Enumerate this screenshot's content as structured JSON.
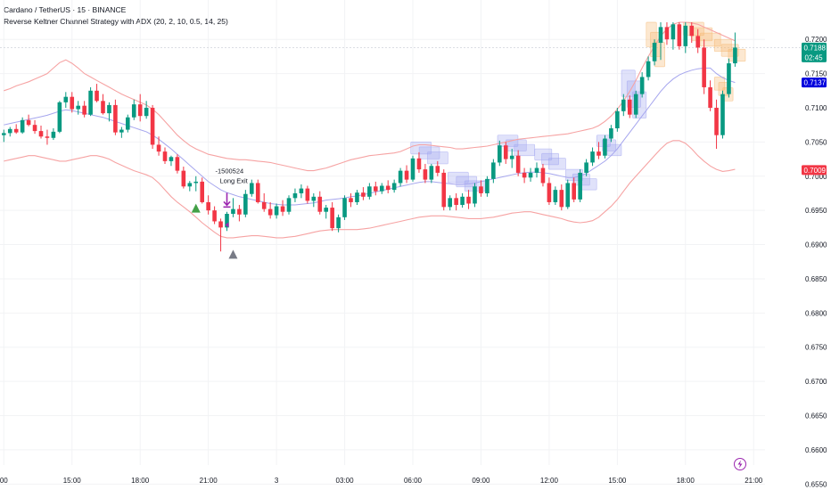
{
  "header": {
    "symbol_line": "Cardano / TetherUS · 15 · BINANCE",
    "indicator_line": "Reverse Keltner Channel Strategy with ADX (20, 2, 10, 0.5, 14, 25)"
  },
  "price_badges": [
    {
      "label": "0.7188",
      "sub": "02:45",
      "price": 0.7188,
      "color": "#089981"
    },
    {
      "label": "0.7137",
      "sub": "",
      "price": 0.7137,
      "color": "#0000dd"
    },
    {
      "label": "0.7009",
      "sub": "",
      "price": 0.7009,
      "color": "#f23645"
    }
  ],
  "annotations": {
    "order_id": "-1500524",
    "exit_label": "Long Exit"
  },
  "flash_icon": "lightning-icon",
  "chart_data": {
    "type": "candlestick",
    "title": "Cardano / TetherUS · 15 · BINANCE",
    "ylim": [
      0.654,
      0.7225
    ],
    "y_ticks": [
      "0.7200",
      "0.7150",
      "0.7100",
      "0.7050",
      "0.7000",
      "0.6950",
      "0.6900",
      "0.6850",
      "0.6800",
      "0.6750",
      "0.6700",
      "0.6650",
      "0.6600",
      "0.6550"
    ],
    "x_ticks": [
      "00",
      "15:00",
      "18:00",
      "21:00",
      "3",
      "03:00",
      "06:00",
      "09:00",
      "12:00",
      "15:00",
      "18:00",
      "21:00"
    ],
    "x_tick_slots": [
      0,
      11,
      22,
      33,
      44,
      55,
      66,
      77,
      88,
      99,
      110,
      121
    ],
    "colors": {
      "up": "#089981",
      "down": "#f23645",
      "channel": "#f6a3a3",
      "basis": "#a6a6ee"
    },
    "candles": [
      [
        0.706,
        0.7068,
        0.705,
        0.7063
      ],
      [
        0.7063,
        0.7072,
        0.7058,
        0.7069
      ],
      [
        0.7069,
        0.7076,
        0.7062,
        0.7064
      ],
      [
        0.7064,
        0.7086,
        0.7062,
        0.7082
      ],
      [
        0.7082,
        0.709,
        0.7073,
        0.7075
      ],
      [
        0.7075,
        0.7082,
        0.7062,
        0.7066
      ],
      [
        0.7066,
        0.7074,
        0.7055,
        0.7058
      ],
      [
        0.7058,
        0.7068,
        0.7046,
        0.7056
      ],
      [
        0.7056,
        0.707,
        0.7053,
        0.7065
      ],
      [
        0.7065,
        0.711,
        0.7063,
        0.7108
      ],
      [
        0.7108,
        0.7123,
        0.71,
        0.7116
      ],
      [
        0.7116,
        0.7123,
        0.7093,
        0.7098
      ],
      [
        0.7098,
        0.711,
        0.709,
        0.7103
      ],
      [
        0.7103,
        0.711,
        0.7086,
        0.709
      ],
      [
        0.709,
        0.713,
        0.7088,
        0.7125
      ],
      [
        0.7125,
        0.7135,
        0.7108,
        0.711
      ],
      [
        0.711,
        0.712,
        0.709,
        0.7092
      ],
      [
        0.7092,
        0.7108,
        0.708,
        0.7104
      ],
      [
        0.7104,
        0.7112,
        0.706,
        0.7064
      ],
      [
        0.7064,
        0.7072,
        0.7056,
        0.7068
      ],
      [
        0.7068,
        0.709,
        0.7064,
        0.7086
      ],
      [
        0.7086,
        0.7112,
        0.7082,
        0.7105
      ],
      [
        0.7105,
        0.712,
        0.708,
        0.7088
      ],
      [
        0.7088,
        0.711,
        0.7084,
        0.71
      ],
      [
        0.71,
        0.7104,
        0.704,
        0.7046
      ],
      [
        0.7046,
        0.7058,
        0.703,
        0.7036
      ],
      [
        0.7036,
        0.7042,
        0.7018,
        0.7022
      ],
      [
        0.7022,
        0.703,
        0.7015,
        0.7028
      ],
      [
        0.7028,
        0.7032,
        0.7004,
        0.7008
      ],
      [
        0.7008,
        0.7014,
        0.6982,
        0.6985
      ],
      [
        0.6985,
        0.6993,
        0.6978,
        0.699
      ],
      [
        0.699,
        0.7,
        0.6978,
        0.6992
      ],
      [
        0.6992,
        0.6998,
        0.696,
        0.6962
      ],
      [
        0.6962,
        0.6972,
        0.6944,
        0.695
      ],
      [
        0.695,
        0.6956,
        0.693,
        0.6934
      ],
      [
        0.6934,
        0.6938,
        0.689,
        0.6925
      ],
      [
        0.6925,
        0.6948,
        0.692,
        0.6945
      ],
      [
        0.6945,
        0.6968,
        0.694,
        0.6952
      ],
      [
        0.6952,
        0.6958,
        0.6934,
        0.6944
      ],
      [
        0.6944,
        0.698,
        0.694,
        0.6974
      ],
      [
        0.6974,
        0.6995,
        0.697,
        0.699
      ],
      [
        0.699,
        0.6995,
        0.696,
        0.6962
      ],
      [
        0.6962,
        0.6975,
        0.6948,
        0.6952
      ],
      [
        0.6952,
        0.6962,
        0.6938,
        0.6943
      ],
      [
        0.6943,
        0.696,
        0.6938,
        0.6956
      ],
      [
        0.6956,
        0.6965,
        0.6942,
        0.6948
      ],
      [
        0.6948,
        0.6972,
        0.6944,
        0.6968
      ],
      [
        0.6968,
        0.6982,
        0.6962,
        0.6975
      ],
      [
        0.6975,
        0.6988,
        0.6968,
        0.6982
      ],
      [
        0.6982,
        0.6986,
        0.696,
        0.6964
      ],
      [
        0.6964,
        0.6975,
        0.6955,
        0.697
      ],
      [
        0.697,
        0.6978,
        0.6944,
        0.6948
      ],
      [
        0.6948,
        0.6958,
        0.6938,
        0.6954
      ],
      [
        0.6954,
        0.6962,
        0.692,
        0.6924
      ],
      [
        0.6924,
        0.6944,
        0.6918,
        0.694
      ],
      [
        0.694,
        0.6972,
        0.6936,
        0.6968
      ],
      [
        0.6968,
        0.6975,
        0.6955,
        0.6962
      ],
      [
        0.6962,
        0.698,
        0.6958,
        0.6976
      ],
      [
        0.6976,
        0.6984,
        0.6965,
        0.697
      ],
      [
        0.697,
        0.699,
        0.6966,
        0.6985
      ],
      [
        0.6985,
        0.6992,
        0.6972,
        0.6978
      ],
      [
        0.6978,
        0.699,
        0.6974,
        0.6986
      ],
      [
        0.6986,
        0.6994,
        0.6975,
        0.698
      ],
      [
        0.698,
        0.6995,
        0.6976,
        0.699
      ],
      [
        0.699,
        0.7012,
        0.6985,
        0.7008
      ],
      [
        0.7008,
        0.7016,
        0.699,
        0.6995
      ],
      [
        0.6995,
        0.703,
        0.6992,
        0.7026
      ],
      [
        0.7026,
        0.7035,
        0.7005,
        0.701
      ],
      [
        0.701,
        0.7018,
        0.699,
        0.6995
      ],
      [
        0.6995,
        0.7018,
        0.699,
        0.7015
      ],
      [
        0.7015,
        0.7022,
        0.7,
        0.7005
      ],
      [
        0.7005,
        0.701,
        0.695,
        0.6955
      ],
      [
        0.6955,
        0.6972,
        0.695,
        0.6968
      ],
      [
        0.6968,
        0.6975,
        0.695,
        0.6958
      ],
      [
        0.6958,
        0.6975,
        0.6954,
        0.697
      ],
      [
        0.697,
        0.698,
        0.6952,
        0.696
      ],
      [
        0.696,
        0.699,
        0.6955,
        0.6985
      ],
      [
        0.6985,
        0.6994,
        0.697,
        0.6975
      ],
      [
        0.6975,
        0.7,
        0.697,
        0.6996
      ],
      [
        0.6996,
        0.7025,
        0.699,
        0.702
      ],
      [
        0.702,
        0.7052,
        0.7015,
        0.7045
      ],
      [
        0.7045,
        0.705,
        0.7018,
        0.7025
      ],
      [
        0.7025,
        0.704,
        0.7012,
        0.703
      ],
      [
        0.703,
        0.7038,
        0.7,
        0.7005
      ],
      [
        0.7005,
        0.7012,
        0.699,
        0.6998
      ],
      [
        0.6998,
        0.7012,
        0.6992,
        0.7005
      ],
      [
        0.7005,
        0.702,
        0.6998,
        0.7012
      ],
      [
        0.7012,
        0.7018,
        0.6985,
        0.699
      ],
      [
        0.699,
        0.6998,
        0.6958,
        0.6962
      ],
      [
        0.6962,
        0.6985,
        0.6958,
        0.698
      ],
      [
        0.698,
        0.6988,
        0.695,
        0.6955
      ],
      [
        0.6955,
        0.6995,
        0.6952,
        0.699
      ],
      [
        0.699,
        0.6998,
        0.6962,
        0.6966
      ],
      [
        0.6966,
        0.701,
        0.6962,
        0.7005
      ],
      [
        0.7005,
        0.7025,
        0.7,
        0.702
      ],
      [
        0.702,
        0.7042,
        0.7015,
        0.7036
      ],
      [
        0.7036,
        0.705,
        0.7025,
        0.703
      ],
      [
        0.703,
        0.706,
        0.7026,
        0.7055
      ],
      [
        0.7055,
        0.7075,
        0.705,
        0.707
      ],
      [
        0.707,
        0.71,
        0.7065,
        0.7095
      ],
      [
        0.7095,
        0.712,
        0.7088,
        0.7112
      ],
      [
        0.7112,
        0.7118,
        0.7085,
        0.709
      ],
      [
        0.709,
        0.7125,
        0.7085,
        0.712
      ],
      [
        0.712,
        0.7152,
        0.7115,
        0.7145
      ],
      [
        0.7145,
        0.7175,
        0.714,
        0.7168
      ],
      [
        0.7168,
        0.72,
        0.7162,
        0.7195
      ],
      [
        0.7195,
        0.7225,
        0.717,
        0.7218
      ],
      [
        0.7218,
        0.7225,
        0.7192,
        0.72
      ],
      [
        0.72,
        0.7225,
        0.7185,
        0.7222
      ],
      [
        0.7222,
        0.7225,
        0.7185,
        0.719
      ],
      [
        0.719,
        0.7225,
        0.718,
        0.722
      ],
      [
        0.722,
        0.7225,
        0.7195,
        0.7205
      ],
      [
        0.7205,
        0.7215,
        0.718,
        0.7188
      ],
      [
        0.7188,
        0.72,
        0.712,
        0.713
      ],
      [
        0.713,
        0.714,
        0.7095,
        0.71
      ],
      [
        0.71,
        0.7112,
        0.704,
        0.706
      ],
      [
        0.706,
        0.7125,
        0.7055,
        0.712
      ],
      [
        0.712,
        0.7172,
        0.7115,
        0.7165
      ],
      [
        0.7165,
        0.721,
        0.716,
        0.7188
      ]
    ],
    "upper_band": [
      0.7125,
      0.7128,
      0.7132,
      0.7135,
      0.7138,
      0.7142,
      0.7146,
      0.715,
      0.7158,
      0.7166,
      0.717,
      0.7165,
      0.7158,
      0.715,
      0.7145,
      0.714,
      0.7135,
      0.713,
      0.7125,
      0.712,
      0.7116,
      0.7112,
      0.7108,
      0.7104,
      0.7098,
      0.709,
      0.708,
      0.707,
      0.706,
      0.7052,
      0.7045,
      0.704,
      0.7036,
      0.7032,
      0.703,
      0.7028,
      0.7026,
      0.7025,
      0.7024,
      0.7024,
      0.7023,
      0.7022,
      0.7021,
      0.702,
      0.7018,
      0.7016,
      0.7014,
      0.7012,
      0.701,
      0.7008,
      0.7008,
      0.701,
      0.7012,
      0.7015,
      0.7018,
      0.7021,
      0.7024,
      0.7026,
      0.7028,
      0.703,
      0.7031,
      0.7032,
      0.7033,
      0.7034,
      0.7036,
      0.704,
      0.7044,
      0.7046,
      0.7046,
      0.7045,
      0.7044,
      0.7043,
      0.7042,
      0.704,
      0.704,
      0.7041,
      0.7042,
      0.7043,
      0.7044,
      0.7046,
      0.7048,
      0.705,
      0.7052,
      0.7054,
      0.7055,
      0.7056,
      0.7057,
      0.7058,
      0.7059,
      0.706,
      0.7061,
      0.7062,
      0.7064,
      0.7066,
      0.7068,
      0.707,
      0.7074,
      0.708,
      0.7088,
      0.7098,
      0.711,
      0.7124,
      0.714,
      0.7158,
      0.7175,
      0.719,
      0.7205,
      0.7215,
      0.7222,
      0.7225,
      0.7225,
      0.7224,
      0.7222,
      0.7218,
      0.7214,
      0.721,
      0.7206,
      0.7202,
      0.7198
    ],
    "basis": [
      0.7075,
      0.7077,
      0.7079,
      0.7081,
      0.7083,
      0.7085,
      0.7087,
      0.7089,
      0.7092,
      0.7095,
      0.7097,
      0.7096,
      0.7094,
      0.7092,
      0.709,
      0.7088,
      0.7086,
      0.7083,
      0.708,
      0.7077,
      0.7074,
      0.7071,
      0.7068,
      0.7065,
      0.706,
      0.7054,
      0.7047,
      0.704,
      0.7032,
      0.7024,
      0.7016,
      0.7008,
      0.7,
      0.6992,
      0.6986,
      0.698,
      0.6976,
      0.6973,
      0.697,
      0.6968,
      0.6966,
      0.6964,
      0.6962,
      0.696,
      0.6959,
      0.6958,
      0.6958,
      0.6958,
      0.6959,
      0.696,
      0.6961,
      0.6963,
      0.6965,
      0.6966,
      0.6967,
      0.6968,
      0.697,
      0.6971,
      0.6973,
      0.6975,
      0.6977,
      0.6979,
      0.6981,
      0.6983,
      0.6985,
      0.6987,
      0.6989,
      0.6991,
      0.6992,
      0.6992,
      0.6991,
      0.699,
      0.6989,
      0.6988,
      0.6988,
      0.6989,
      0.699,
      0.6992,
      0.6994,
      0.6996,
      0.6998,
      0.7,
      0.7002,
      0.7004,
      0.7005,
      0.7006,
      0.7006,
      0.7005,
      0.7004,
      0.7002,
      0.7,
      0.6998,
      0.6998,
      0.7,
      0.7004,
      0.701,
      0.7016,
      0.7022,
      0.703,
      0.704,
      0.7052,
      0.7064,
      0.7076,
      0.7088,
      0.71,
      0.7112,
      0.7124,
      0.7134,
      0.7142,
      0.7148,
      0.7152,
      0.7155,
      0.7157,
      0.7158,
      0.7158,
      0.715,
      0.7144,
      0.714,
      0.7137
    ],
    "lower_band": [
      0.7022,
      0.7024,
      0.7026,
      0.7028,
      0.703,
      0.703,
      0.7028,
      0.7026,
      0.7024,
      0.7022,
      0.7022,
      0.7024,
      0.7026,
      0.7028,
      0.703,
      0.703,
      0.7028,
      0.7025,
      0.702,
      0.7016,
      0.7012,
      0.7008,
      0.7005,
      0.7002,
      0.6998,
      0.699,
      0.698,
      0.697,
      0.6962,
      0.6955,
      0.6948,
      0.694,
      0.6932,
      0.6925,
      0.6918,
      0.6912,
      0.691,
      0.691,
      0.6911,
      0.6912,
      0.6913,
      0.6913,
      0.6912,
      0.6911,
      0.691,
      0.691,
      0.6911,
      0.6912,
      0.6914,
      0.6916,
      0.6918,
      0.692,
      0.6921,
      0.6922,
      0.6922,
      0.6922,
      0.6922,
      0.6922,
      0.6923,
      0.6924,
      0.6926,
      0.6928,
      0.693,
      0.6932,
      0.6934,
      0.6936,
      0.6938,
      0.694,
      0.6941,
      0.6942,
      0.6942,
      0.6942,
      0.6941,
      0.694,
      0.6939,
      0.6938,
      0.6938,
      0.6938,
      0.6939,
      0.694,
      0.6942,
      0.6944,
      0.6946,
      0.6947,
      0.6948,
      0.6948,
      0.6946,
      0.6944,
      0.6942,
      0.694,
      0.6938,
      0.6935,
      0.6933,
      0.6932,
      0.6933,
      0.6935,
      0.694,
      0.6948,
      0.6956,
      0.6966,
      0.6978,
      0.699,
      0.7,
      0.701,
      0.702,
      0.703,
      0.704,
      0.7048,
      0.7052,
      0.7052,
      0.7048,
      0.704,
      0.703,
      0.7022,
      0.7015,
      0.701,
      0.7007,
      0.7008,
      0.701
    ],
    "signals": [
      {
        "type": "long-entry",
        "index": 31,
        "price": 0.6965,
        "color": "#43a047"
      },
      {
        "type": "long-exit",
        "index": 36,
        "price": 0.6968,
        "color": "#9c27b0"
      },
      {
        "type": "close",
        "index": 37,
        "price": 0.6895,
        "color": "#787b86"
      }
    ],
    "box_clusters": [
      {
        "start": 66,
        "end": 72,
        "top": 0.705,
        "bottom": 0.7018,
        "color": "#a0a4f0"
      },
      {
        "start": 72,
        "end": 78,
        "top": 0.7006,
        "bottom": 0.6978,
        "color": "#a0a4f0"
      },
      {
        "start": 80,
        "end": 86,
        "top": 0.706,
        "bottom": 0.703,
        "color": "#a0a4f0"
      },
      {
        "start": 86,
        "end": 91,
        "top": 0.704,
        "bottom": 0.701,
        "color": "#a0a4f0"
      },
      {
        "start": 91,
        "end": 96,
        "top": 0.701,
        "bottom": 0.698,
        "color": "#a0a4f0"
      },
      {
        "start": 96,
        "end": 100,
        "top": 0.706,
        "bottom": 0.703,
        "color": "#a0a4f0"
      },
      {
        "start": 100,
        "end": 104,
        "top": 0.7155,
        "bottom": 0.7085,
        "color": "#a0a4f0"
      },
      {
        "start": 104,
        "end": 107,
        "top": 0.7225,
        "bottom": 0.716,
        "color": "#f5b870"
      },
      {
        "start": 110,
        "end": 116,
        "top": 0.7225,
        "bottom": 0.719,
        "color": "#f5b870"
      },
      {
        "start": 115,
        "end": 120,
        "top": 0.72,
        "bottom": 0.7168,
        "color": "#f5b870"
      },
      {
        "start": 115,
        "end": 118,
        "top": 0.7145,
        "bottom": 0.711,
        "color": "#f5b870"
      }
    ]
  }
}
